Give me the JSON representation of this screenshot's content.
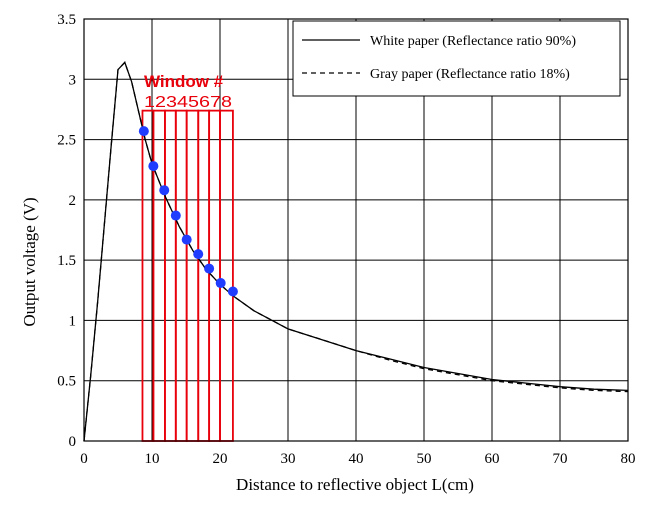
{
  "chart_data": {
    "type": "line",
    "xlabel": "Distance to reflective object L(cm)",
    "ylabel": "Output voltage (V)",
    "xlim": [
      0,
      80
    ],
    "ylim": [
      0,
      3.5
    ],
    "x_ticks": [
      0,
      10,
      20,
      30,
      40,
      50,
      60,
      70,
      80
    ],
    "y_ticks": [
      0,
      0.5,
      1,
      1.5,
      2,
      2.5,
      3,
      3.5
    ],
    "x_tick_labels": [
      "0",
      "10",
      "20",
      "30",
      "40",
      "50",
      "60",
      "70",
      "80"
    ],
    "y_tick_labels": [
      "0",
      "0.5",
      "1",
      "1.5",
      "2",
      "2.5",
      "3",
      "3.5"
    ],
    "grid": true,
    "legend_position": "top-right",
    "series": [
      {
        "name": "White paper (Reflectance ratio 90%)",
        "style": "solid",
        "x": [
          0,
          1,
          2,
          3,
          4,
          5,
          6,
          7,
          8,
          9,
          10,
          12,
          14,
          16,
          18,
          20,
          22,
          25,
          30,
          35,
          40,
          45,
          50,
          55,
          60,
          65,
          70,
          75,
          80
        ],
        "y": [
          0.0,
          0.55,
          1.15,
          1.8,
          2.45,
          3.08,
          3.14,
          2.98,
          2.74,
          2.5,
          2.3,
          2.02,
          1.78,
          1.58,
          1.42,
          1.3,
          1.2,
          1.08,
          0.93,
          0.84,
          0.75,
          0.68,
          0.61,
          0.56,
          0.51,
          0.48,
          0.45,
          0.43,
          0.42
        ]
      },
      {
        "name": "Gray paper (Reflectance ratio 18%)",
        "style": "dashed",
        "x": [
          0,
          1,
          2,
          3,
          4,
          5,
          6,
          7,
          8,
          9,
          10,
          12,
          14,
          16,
          18,
          20,
          22,
          25,
          30,
          35,
          40,
          45,
          50,
          55,
          60,
          65,
          70,
          75,
          80
        ],
        "y": [
          0.0,
          0.55,
          1.15,
          1.8,
          2.45,
          3.08,
          3.14,
          2.98,
          2.74,
          2.5,
          2.3,
          2.02,
          1.78,
          1.58,
          1.42,
          1.3,
          1.2,
          1.08,
          0.93,
          0.84,
          0.75,
          0.67,
          0.6,
          0.55,
          0.5,
          0.47,
          0.44,
          0.42,
          0.41
        ]
      }
    ],
    "annotation": {
      "title": "Window #",
      "numbers": "12345678",
      "color": "#e8000b",
      "window_x_edges": [
        8.6,
        10.2,
        11.9,
        13.5,
        15.1,
        16.8,
        18.4,
        20.0,
        21.9
      ],
      "window_top_y": 2.74
    },
    "markers": {
      "color": "#1f3cff",
      "points": [
        {
          "x": 8.8,
          "y": 2.57
        },
        {
          "x": 10.2,
          "y": 2.28
        },
        {
          "x": 11.8,
          "y": 2.08
        },
        {
          "x": 13.5,
          "y": 1.87
        },
        {
          "x": 15.1,
          "y": 1.67
        },
        {
          "x": 16.8,
          "y": 1.55
        },
        {
          "x": 18.4,
          "y": 1.43
        },
        {
          "x": 20.1,
          "y": 1.31
        },
        {
          "x": 21.9,
          "y": 1.24
        }
      ]
    }
  }
}
